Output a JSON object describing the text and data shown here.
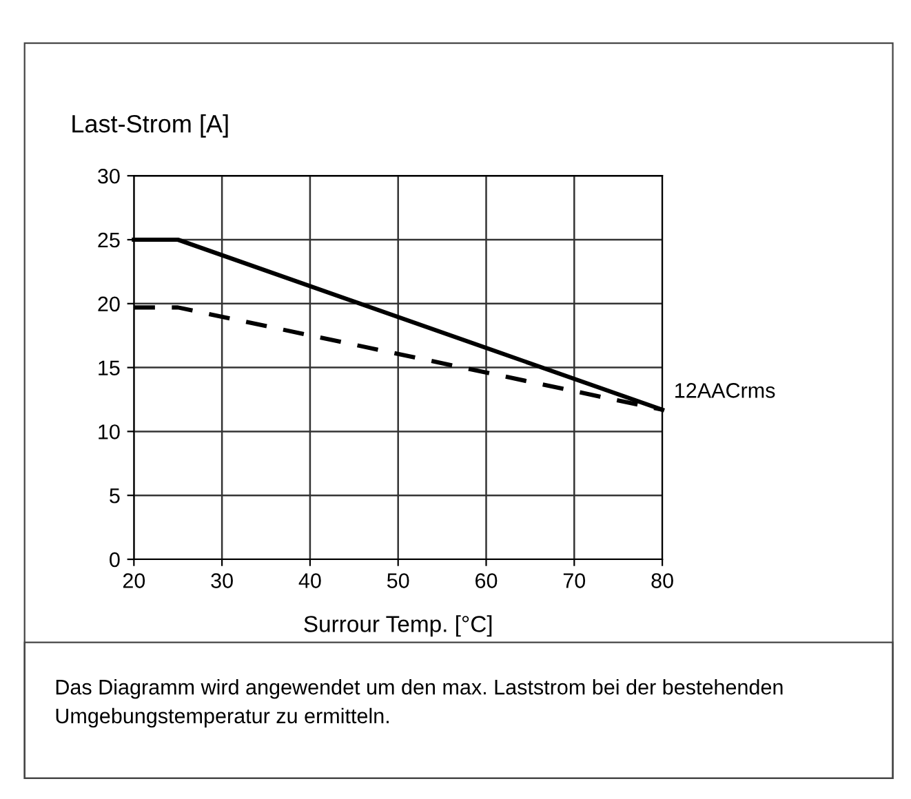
{
  "chart_data": {
    "type": "line",
    "ylabel": "Last-Strom [A]",
    "xlabel": "Surrour Temp. [°C]",
    "x": [
      20,
      25,
      80
    ],
    "series": [
      {
        "color": "#000000",
        "line_style": "solid",
        "values": [
          25,
          25,
          11.7
        ]
      },
      {
        "color": "#000000",
        "line_style": "dashed",
        "values": [
          19.7,
          19.7,
          11.7
        ]
      }
    ],
    "xlim": [
      20,
      80
    ],
    "xticks": [
      20,
      30,
      40,
      50,
      60,
      70,
      80
    ],
    "ylim": [
      0,
      30
    ],
    "yticks": [
      0,
      5,
      10,
      15,
      20,
      25,
      30
    ],
    "grid": true,
    "annotations": [
      {
        "text": "12AACrms",
        "x": 80,
        "y": 11.7
      },
      "Das Diagramm wird angewendet um den max. Laststrom bei der bestehenden Umgebungstemperatur zu ermitteln."
    ]
  }
}
